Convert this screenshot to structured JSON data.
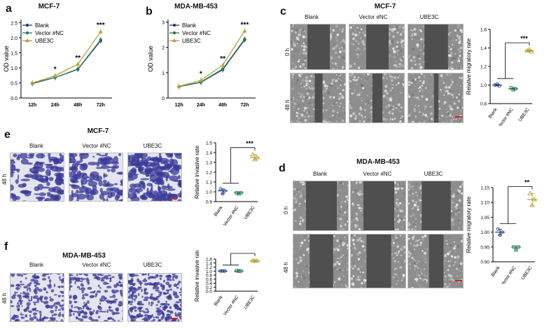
{
  "panels": {
    "a": {
      "letter": "a",
      "title": "MCF-7"
    },
    "b": {
      "letter": "b",
      "title": "MDA-MB-453"
    },
    "c": {
      "letter": "c",
      "title": "MCF-7",
      "columns": [
        "Blank",
        "Vector #NC",
        "UBE3C"
      ],
      "rows": [
        "0 h",
        "48 h"
      ]
    },
    "d": {
      "letter": "d",
      "title": "MDA-MB-453",
      "columns": [
        "Blank",
        "Vector #NC",
        "UBE3C"
      ],
      "rows": [
        "0 h",
        "48 h"
      ]
    },
    "e": {
      "letter": "e",
      "title": "MCF-7",
      "columns": [
        "Blank",
        "Vector #NC",
        "UBE3C"
      ],
      "rows": [
        "48 h"
      ]
    },
    "f": {
      "letter": "f",
      "title": "MDA-MB-453",
      "columns": [
        "Blank",
        "Vector #NC",
        "UBE3C"
      ],
      "rows": [
        "48 h"
      ]
    }
  },
  "colors": {
    "blank": "#1f3a7a",
    "vector": "#2a7a5a",
    "ube3c": "#b5a23a",
    "stain": "#3a3a9a",
    "scalebar": "#d32020"
  },
  "chart_data": [
    {
      "id": "a",
      "type": "line",
      "ylabel": "OD value",
      "x": [
        "12h",
        "24h",
        "48h",
        "72h"
      ],
      "ylim": [
        0,
        2.6
      ],
      "yticks": [
        "0.0",
        "0.5",
        "1.0",
        "1.5",
        "2.0",
        "2.5"
      ],
      "ytickvals": [
        0,
        0.5,
        1.0,
        1.5,
        2.0,
        2.5
      ],
      "legend": "top-left",
      "series": [
        {
          "name": "Blank",
          "values": [
            0.48,
            0.68,
            0.95,
            1.9
          ]
        },
        {
          "name": "Vector #NC",
          "values": [
            0.49,
            0.68,
            0.96,
            1.93
          ]
        },
        {
          "name": "UBE3C",
          "values": [
            0.5,
            0.74,
            1.12,
            2.2
          ]
        }
      ],
      "significance": [
        "",
        "*",
        "**",
        "***"
      ]
    },
    {
      "id": "b",
      "type": "line",
      "ylabel": "OD value",
      "x": [
        "12h",
        "24h",
        "48h",
        "72h"
      ],
      "ylim": [
        0,
        3.1
      ],
      "yticks": [
        "0",
        "1",
        "2",
        "3"
      ],
      "ytickvals": [
        0,
        1,
        2,
        3
      ],
      "legend": "top-left",
      "series": [
        {
          "name": "Blank",
          "values": [
            0.45,
            0.62,
            1.12,
            2.3
          ]
        },
        {
          "name": "Vector #NC",
          "values": [
            0.45,
            0.63,
            1.15,
            2.33
          ]
        },
        {
          "name": "UBE3C",
          "values": [
            0.46,
            0.7,
            1.3,
            2.65
          ]
        }
      ],
      "significance": [
        "",
        "*",
        "**",
        "***"
      ]
    },
    {
      "id": "c",
      "type": "scatter",
      "ylabel": "Relative migratory rate",
      "categories": [
        "Blank",
        "Vector #NC",
        "UBE3C"
      ],
      "ylim": [
        0.8,
        1.6
      ],
      "yticks": [
        "0.8",
        "1.0",
        "1.2",
        "1.4",
        "1.6"
      ],
      "ytickvals": [
        0.8,
        1.0,
        1.2,
        1.4,
        1.6
      ],
      "points": [
        [
          1.0,
          1.01,
          0.99
        ],
        [
          0.97,
          0.95,
          0.96
        ],
        [
          1.37,
          1.38,
          1.36
        ]
      ],
      "means": [
        1.0,
        0.96,
        1.37
      ],
      "significance": "***"
    },
    {
      "id": "e",
      "type": "scatter",
      "ylabel": "Relative invasive rate",
      "categories": [
        "Blank",
        "Vector #NC",
        "UBE3C"
      ],
      "ylim": [
        0.9,
        1.5
      ],
      "yticks": [
        "0.9",
        "1.0",
        "1.1",
        "1.2",
        "1.3",
        "1.4",
        "1.5"
      ],
      "ytickvals": [
        0.9,
        1.0,
        1.1,
        1.2,
        1.3,
        1.4,
        1.5
      ],
      "points": [
        [
          1.03,
          0.98,
          1.01
        ],
        [
          0.99,
          0.98,
          0.99
        ],
        [
          1.38,
          1.33,
          1.35
        ]
      ],
      "means": [
        1.01,
        0.99,
        1.35
      ],
      "significance": "***"
    },
    {
      "id": "d",
      "type": "scatter",
      "ylabel": "Relative migratory rate",
      "categories": [
        "Blank",
        "Vector #NC",
        "UBE3C"
      ],
      "ylim": [
        0.9,
        1.15
      ],
      "yticks": [
        "0.90",
        "0.95",
        "1.00",
        "1.05",
        "1.10",
        "1.15"
      ],
      "ytickvals": [
        0.9,
        0.95,
        1.0,
        1.05,
        1.1,
        1.15
      ],
      "points": [
        [
          1.01,
          0.99,
          1.0
        ],
        [
          0.95,
          0.94,
          0.95
        ],
        [
          1.13,
          1.09,
          1.11
        ]
      ],
      "means": [
        1.0,
        0.95,
        1.11
      ],
      "significance": "**"
    },
    {
      "id": "f",
      "type": "scatter",
      "ylabel": "Relative invasive rate",
      "categories": [
        "Blank",
        "Vector #NC",
        "UBE3C"
      ],
      "ylim": [
        0,
        1.6
      ],
      "yticks": [
        "0.0",
        "0.2",
        "0.4",
        "0.6",
        "0.8",
        "1.0",
        "1.2",
        "1.4",
        "1.6"
      ],
      "ytickvals": [
        0,
        0.2,
        0.4,
        0.6,
        0.8,
        1.0,
        1.2,
        1.4,
        1.6
      ],
      "points": [
        [
          1.0,
          1.0,
          1.0
        ],
        [
          1.02,
          0.99,
          1.0
        ],
        [
          1.53,
          1.5,
          1.51
        ]
      ],
      "means": [
        1.0,
        1.0,
        1.51
      ],
      "significance": "***"
    }
  ]
}
